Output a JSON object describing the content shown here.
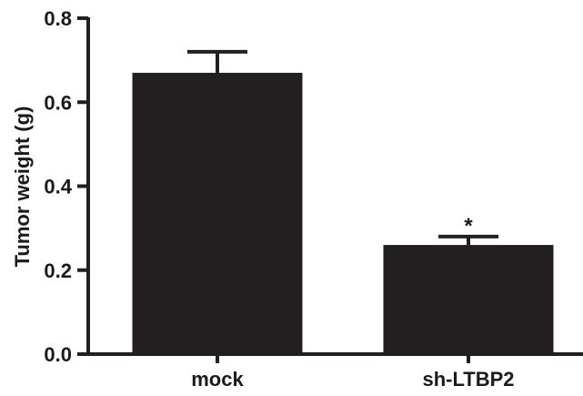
{
  "chart_data": {
    "type": "bar",
    "categories": [
      "mock",
      "sh-LTBP2"
    ],
    "values": [
      0.67,
      0.26
    ],
    "errors": [
      0.05,
      0.02
    ],
    "annotations": [
      "",
      "*"
    ],
    "title": "",
    "xlabel": "",
    "ylabel": "Tumor weight (g)",
    "ylim": [
      0,
      0.8
    ],
    "yticks": [
      "0.0",
      "0.2",
      "0.4",
      "0.6",
      "0.8"
    ],
    "ytick_values": [
      0,
      0.2,
      0.4,
      0.6,
      0.8
    ],
    "grid": false,
    "legend": "none",
    "colors": {
      "bar": "#231f20",
      "axis": "#231f20",
      "text": "#1a1a1a"
    }
  }
}
